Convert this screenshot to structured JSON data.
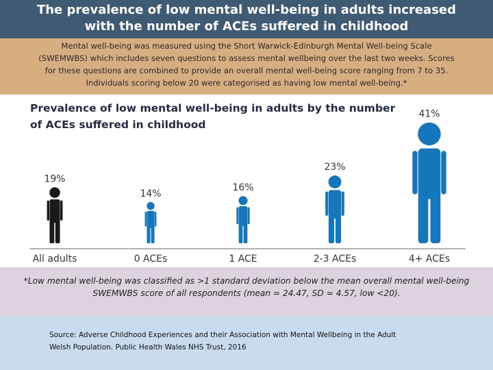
{
  "header": {
    "title_line1": "The prevalence of low mental well-being in adults increased",
    "title_line2": "with the number of ACEs suffered in childhood"
  },
  "description": {
    "lines": [
      "Mental well-being was measured using the Short Warwick-Edinburgh Mental Well-being Scale",
      "(SWEMWBS) which includes seven questions to assess mental wellbeing over the last two weeks. Scores",
      "for these questions are combined to provide an overall mental well-being score ranging from 7 to 35.",
      "Individuals scoring below 20 were categorised as having low mental well-being.*"
    ]
  },
  "chart_data": {
    "type": "bar",
    "title_line1": "Prevalence of low mental well-being in adults by the number",
    "title_line2": "of ACEs suffered in childhood",
    "categories": [
      "All adults",
      "0 ACEs",
      "1 ACE",
      "2-3 ACEs",
      "4+ ACEs"
    ],
    "values": [
      19,
      14,
      16,
      23,
      41
    ],
    "value_labels": [
      "19%",
      "14%",
      "16%",
      "23%",
      "41%"
    ],
    "unit": "%",
    "mark": "person-icon",
    "colors": [
      "#1a1a1a",
      "#1576bb",
      "#1576bb",
      "#1576bb",
      "#1576bb"
    ],
    "grid": false,
    "axis_line_color": "#9a9a9a"
  },
  "note": {
    "lines": [
      "*Low mental well-being was classified as >1 standard deviation below the mean overall mental well-being",
      "SWEMWBS score of all respondents (mean = 24.47, SD = 4.57, low <20)."
    ]
  },
  "source": {
    "lines": [
      "Source: Adverse Childhood Experiences and their Association with Mental Wellbeing in the Adult",
      "Welsh Population. Public Health Wales NHS Trust, 2016"
    ]
  },
  "colors": {
    "header_bg": "#3f5a73",
    "description_bg": "#d6ae80",
    "note_bg": "#dcd3df",
    "footer_bg": "#c9dbef",
    "accent_blue": "#1576bb"
  }
}
